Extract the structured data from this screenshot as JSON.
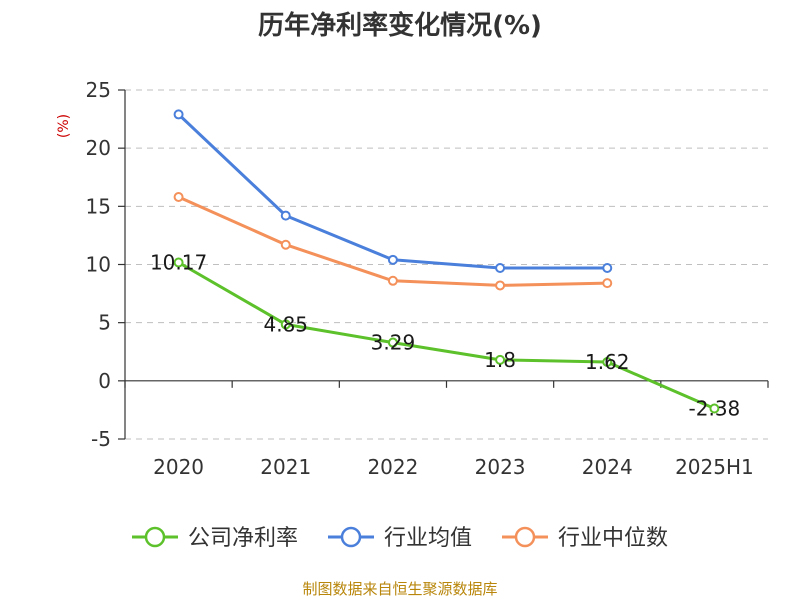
{
  "chart_data": {
    "type": "line",
    "title": "历年净利率变化情况(%)",
    "y_unit_label": "(%)",
    "categories": [
      "2020",
      "2021",
      "2022",
      "2023",
      "2024",
      "2025H1"
    ],
    "ylim": [
      -5,
      25
    ],
    "yticks": [
      -5,
      0,
      5,
      10,
      15,
      20,
      25
    ],
    "grid": true,
    "legend_position": "bottom",
    "series": [
      {
        "name": "公司净利率",
        "color": "#5cc12a",
        "values": [
          10.17,
          4.85,
          3.29,
          1.8,
          1.62,
          -2.38
        ],
        "data_labels": [
          "10.17",
          "4.85",
          "3.29",
          "1.8",
          "1.62",
          "-2.38"
        ]
      },
      {
        "name": "行业均值",
        "color": "#4a7fdb",
        "values": [
          22.9,
          14.2,
          10.4,
          9.7,
          9.7,
          null
        ]
      },
      {
        "name": "行业中位数",
        "color": "#f4905a",
        "values": [
          15.8,
          11.7,
          8.6,
          8.2,
          8.4,
          null
        ]
      }
    ]
  },
  "source": "制图数据来自恒生聚源数据库"
}
